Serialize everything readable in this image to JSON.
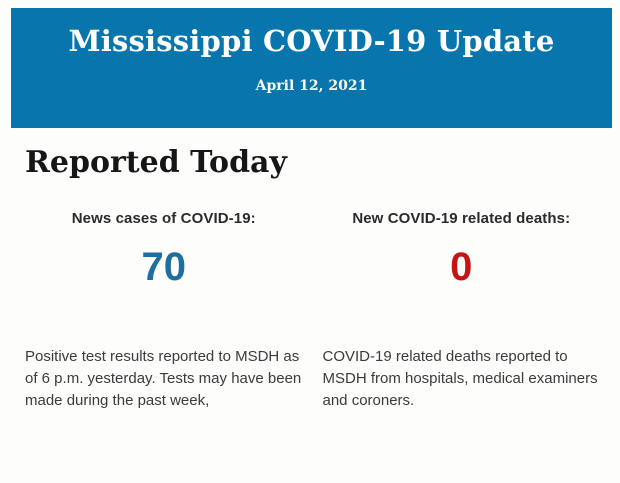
{
  "banner": {
    "title": "Mississippi COVID-19 Update",
    "date": "April 12, 2021",
    "background_color": "#0975ad",
    "text_color": "#ffffff"
  },
  "section": {
    "heading": "Reported Today"
  },
  "stats": [
    {
      "label": "News cases of COVID-19:",
      "value": "70",
      "value_color": "#1d6fa0",
      "description": "Positive test results reported to MSDH as of 6 p.m. yesterday. Tests may have been made during the past week,"
    },
    {
      "label": "New COVID-19 related deaths:",
      "value": "0",
      "value_color": "#c41414",
      "description": "COVID-19 related deaths reported to MSDH from hospitals, medical examiners and coroners."
    }
  ]
}
